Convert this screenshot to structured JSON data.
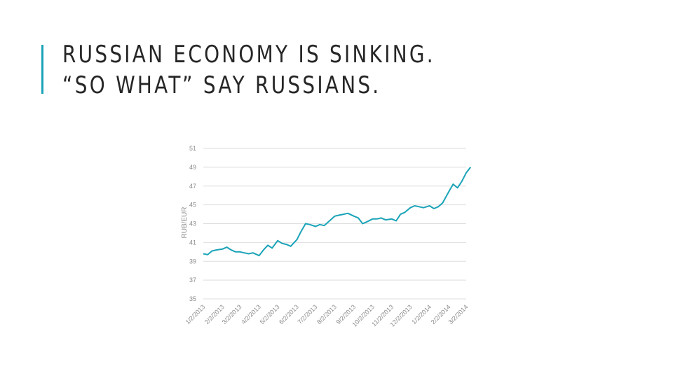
{
  "slide": {
    "title_line1": "RUSSIAN ECONOMY IS SINKING.",
    "title_line2": "“SO WHAT” SAY RUSSIANS.",
    "accent_color": "#1aa3b8"
  },
  "chart_data": {
    "type": "line",
    "title": "",
    "xlabel": "",
    "ylabel": "RUB/EUR",
    "ylim": [
      35,
      51
    ],
    "yticks": [
      35,
      37,
      39,
      41,
      43,
      45,
      47,
      49,
      51
    ],
    "xticks": [
      "1/2/2013",
      "2/2/2013",
      "3/2/2013",
      "4/2/2013",
      "5/2/2013",
      "6/2/2013",
      "7/2/2013",
      "8/2/2013",
      "9/2/2013",
      "10/2/2013",
      "11/2/2013",
      "12/2/2013",
      "1/2/2014",
      "2/2/2014",
      "3/2/2014"
    ],
    "grid": true,
    "legend": "none",
    "line_color": "#1aa3b8",
    "series": [
      {
        "x": [
          "1/2/2013",
          "1/9/2013",
          "1/16/2013",
          "1/23/2013",
          "2/2/2013",
          "2/9/2013",
          "2/16/2013",
          "2/23/2013",
          "3/2/2013",
          "3/9/2013",
          "3/16/2013",
          "3/23/2013",
          "4/2/2013",
          "4/9/2013",
          "4/16/2013",
          "4/23/2013",
          "5/2/2013",
          "5/9/2013",
          "5/16/2013",
          "5/23/2013",
          "6/2/2013",
          "6/9/2013",
          "6/16/2013",
          "6/23/2013",
          "7/2/2013",
          "7/9/2013",
          "7/16/2013",
          "7/23/2013",
          "8/2/2013",
          "8/9/2013",
          "8/16/2013",
          "8/23/2013",
          "9/2/2013",
          "9/9/2013",
          "9/16/2013",
          "9/23/2013",
          "10/2/2013",
          "10/9/2013",
          "10/16/2013",
          "10/23/2013",
          "11/2/2013",
          "11/9/2013",
          "11/16/2013",
          "11/23/2013",
          "12/2/2013",
          "12/9/2013",
          "12/16/2013",
          "12/23/2013",
          "1/2/2014",
          "1/9/2014",
          "1/16/2014",
          "1/23/2014",
          "2/2/2014",
          "2/9/2014",
          "2/16/2014",
          "2/23/2014",
          "3/2/2014",
          "3/9/2014"
        ],
        "values": [
          39.8,
          39.7,
          40.1,
          40.2,
          40.3,
          40.5,
          40.2,
          40.0,
          40.0,
          39.9,
          39.8,
          39.9,
          39.6,
          40.2,
          40.7,
          40.4,
          41.2,
          40.9,
          40.8,
          40.6,
          41.3,
          42.2,
          43.0,
          42.9,
          42.7,
          42.9,
          42.8,
          43.2,
          43.8,
          43.9,
          44.0,
          44.1,
          43.8,
          43.6,
          43.0,
          43.2,
          43.5,
          43.5,
          43.6,
          43.4,
          43.5,
          43.3,
          44.0,
          44.2,
          44.7,
          44.9,
          44.8,
          44.7,
          44.9,
          44.6,
          44.8,
          45.2,
          46.4,
          47.2,
          46.8,
          47.5,
          48.4,
          49.0
        ]
      }
    ]
  }
}
